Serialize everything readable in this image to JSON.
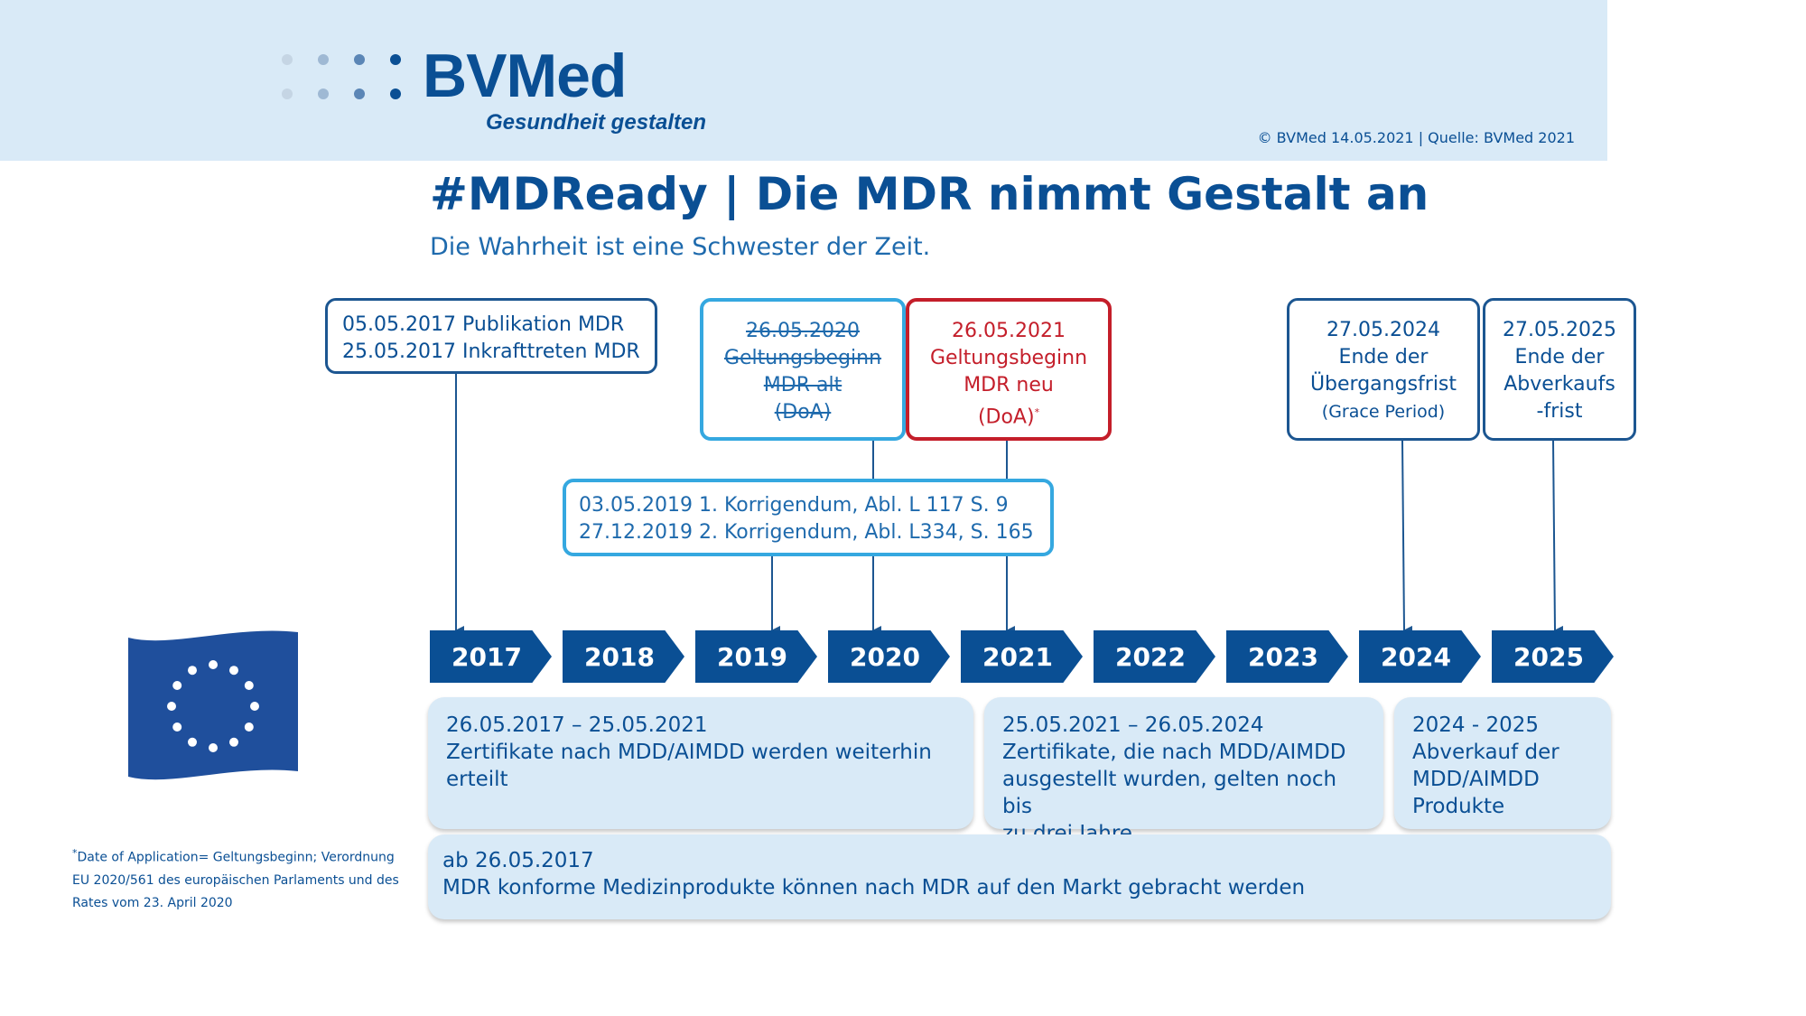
{
  "header": {
    "logo_text": "BVMed",
    "logo_tagline": "Gesundheit gestalten",
    "copyright": "© BVMed 14.05.2021 | Quelle: BVMed 2021"
  },
  "title": "#MDReady | Die MDR nimmt Gestalt an",
  "subtitle": "Die Wahrheit ist eine Schwester der Zeit.",
  "callouts": {
    "publication": {
      "line1": "05.05.2017 Publikation MDR",
      "line2": "25.05.2017 Inkrafttreten MDR"
    },
    "old_doa": {
      "line1": "26.05.2020",
      "line2": "Geltungsbeginn",
      "line3": "MDR alt",
      "line4": "(DoA)"
    },
    "new_doa": {
      "line1": "26.05.2021",
      "line2": "Geltungsbeginn",
      "line3": "MDR neu",
      "line4": "(DoA)",
      "mark": "*"
    },
    "grace": {
      "line1": "27.05.2024",
      "line2": "Ende der",
      "line3": "Übergangsfrist",
      "line4": "(Grace Period)"
    },
    "sellout": {
      "line1": "27.05.2025",
      "line2": "Ende der",
      "line3": "Abverkaufs",
      "line4": "-frist"
    },
    "corrigenda": {
      "line1": "03.05.2019  1. Korrigendum, Abl. L 117 S. 9",
      "line2": "27.12.2019  2. Korrigendum, Abl. L334, S. 165"
    }
  },
  "years": [
    "2017",
    "2018",
    "2019",
    "2020",
    "2021",
    "2022",
    "2023",
    "2024",
    "2025"
  ],
  "panels": {
    "p1": {
      "line1": "26.05.2017 – 25.05.2021",
      "line2": "Zertifikate nach MDD/AIMDD werden weiterhin",
      "line3": "erteilt"
    },
    "p2": {
      "line1": "25.05.2021 – 26.05.2024",
      "line2": "Zertifikate, die nach MDD/AIMDD",
      "line3": "ausgestellt wurden, gelten noch bis",
      "line4": "zu drei Jahre"
    },
    "p3": {
      "line1": "2024 - 2025",
      "line2": "Abverkauf der",
      "line3": "MDD/AIMDD",
      "line4": "Produkte"
    },
    "p4": {
      "line1": "ab 26.05.2017",
      "line2": "MDR konforme Medizinprodukte können nach MDR auf den Markt gebracht werden"
    }
  },
  "footnote": {
    "mark": "*",
    "text": "Date of Application= Geltungsbeginn; Verordnung EU 2020/561 des europäischen Parlaments und des Rates vom 23. April 2020"
  },
  "colors": {
    "brand_blue": "#0a4f94",
    "light_blue": "#35a8e0",
    "red": "#c41e2a",
    "panel_bg": "#d9eaf7"
  }
}
